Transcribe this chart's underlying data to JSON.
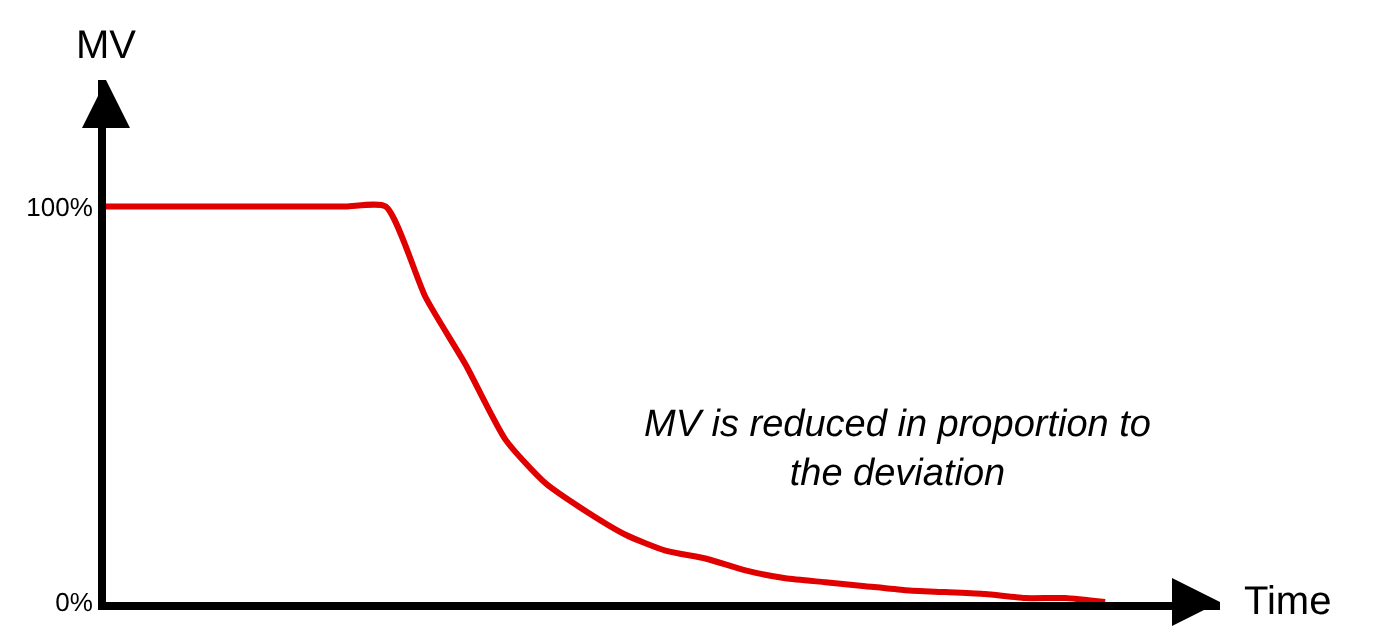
{
  "chart_data": {
    "type": "line",
    "xlabel": "Time",
    "ylabel": "MV",
    "categories": [
      null,
      null,
      null,
      null,
      null,
      null,
      null,
      null,
      null,
      null,
      null,
      null,
      null,
      null,
      null,
      null,
      null,
      null,
      null,
      null,
      null,
      null,
      null,
      null,
      null,
      null
    ],
    "series": [
      {
        "color": "#e00000",
        "values": [
          100,
          100,
          100,
          100,
          100,
          100,
          100,
          100,
          77,
          60,
          41,
          30,
          23,
          17,
          13,
          11,
          8,
          6,
          5,
          4,
          3,
          2.5,
          2,
          1,
          1,
          0
        ]
      }
    ],
    "ylim": [
      0,
      132
    ],
    "yticks": [
      {
        "value": 0,
        "label": "0%"
      },
      {
        "value": 100,
        "label": "100%"
      }
    ],
    "annotations": [
      "MV is reduced in proportion to\nthe deviation"
    ],
    "legend": false,
    "marker": "none",
    "line_style": "solid"
  }
}
